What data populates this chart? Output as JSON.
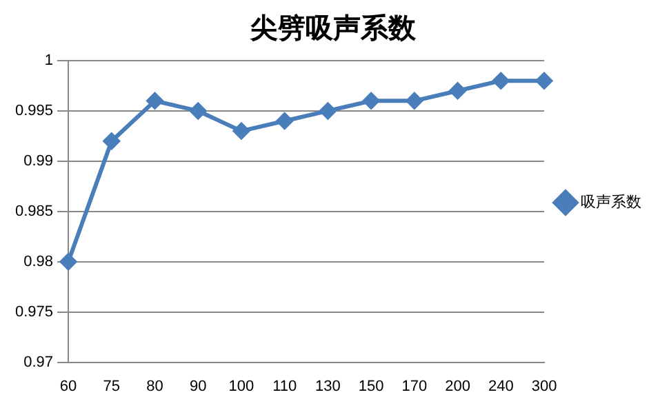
{
  "chart_data": {
    "type": "line",
    "title": "尖劈吸声系数",
    "categories": [
      "60",
      "75",
      "80",
      "90",
      "100",
      "110",
      "130",
      "150",
      "170",
      "200",
      "240",
      "300"
    ],
    "series": [
      {
        "name": "吸声系数",
        "color": "#4a7ebb",
        "values": [
          0.98,
          0.992,
          0.996,
          0.995,
          0.993,
          0.994,
          0.995,
          0.996,
          0.996,
          0.997,
          0.998,
          0.998
        ]
      }
    ],
    "ylim": [
      0.97,
      1
    ],
    "yticks": [
      0.97,
      0.975,
      0.98,
      0.985,
      0.99,
      0.995,
      1
    ],
    "grid": "y",
    "legend": "right",
    "marker": "diamond",
    "line_style": "solid"
  }
}
